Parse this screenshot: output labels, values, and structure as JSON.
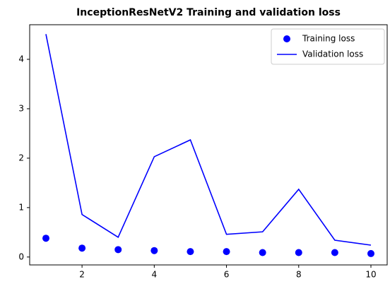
{
  "chart_data": {
    "type": "line",
    "title": "InceptionResNetV2 Training and validation loss",
    "x": [
      1,
      2,
      3,
      4,
      5,
      6,
      7,
      8,
      9,
      10
    ],
    "series": [
      {
        "name": "Training loss",
        "color": "#0000ff",
        "style": "dots",
        "values": [
          0.38,
          0.18,
          0.15,
          0.13,
          0.11,
          0.11,
          0.09,
          0.09,
          0.09,
          0.07
        ]
      },
      {
        "name": "Validation loss",
        "color": "#0000ff",
        "style": "line",
        "values": [
          4.51,
          0.86,
          0.4,
          2.03,
          2.37,
          0.46,
          0.51,
          1.37,
          0.34,
          0.24
        ]
      }
    ],
    "xlim": [
      0.55,
      10.45
    ],
    "xticks": [
      2,
      4,
      6,
      8,
      10
    ],
    "ylim": [
      -0.16,
      4.7
    ],
    "yticks": [
      0,
      1,
      2,
      3,
      4
    ],
    "legend": "upper right"
  }
}
